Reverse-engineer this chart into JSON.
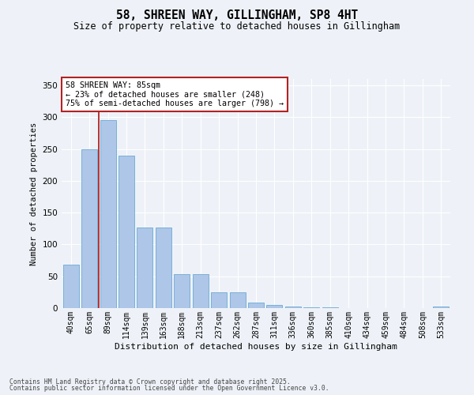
{
  "title": "58, SHREEN WAY, GILLINGHAM, SP8 4HT",
  "subtitle": "Size of property relative to detached houses in Gillingham",
  "xlabel": "Distribution of detached houses by size in Gillingham",
  "ylabel": "Number of detached properties",
  "categories": [
    "40sqm",
    "65sqm",
    "89sqm",
    "114sqm",
    "139sqm",
    "163sqm",
    "188sqm",
    "213sqm",
    "237sqm",
    "262sqm",
    "287sqm",
    "311sqm",
    "336sqm",
    "360sqm",
    "385sqm",
    "410sqm",
    "434sqm",
    "459sqm",
    "484sqm",
    "508sqm",
    "533sqm"
  ],
  "values": [
    68,
    250,
    295,
    240,
    127,
    127,
    54,
    54,
    25,
    25,
    9,
    5,
    2,
    1,
    1,
    0,
    0,
    0,
    0,
    0,
    2
  ],
  "bar_color": "#aec6e8",
  "bar_edge_color": "#6aabd2",
  "vline_x": 1.5,
  "vline_color": "#b22222",
  "annotation_title": "58 SHREEN WAY: 85sqm",
  "annotation_line1": "← 23% of detached houses are smaller (248)",
  "annotation_line2": "75% of semi-detached houses are larger (798) →",
  "annotation_box_color": "#b22222",
  "annotation_box_facecolor": "white",
  "footer1": "Contains HM Land Registry data © Crown copyright and database right 2025.",
  "footer2": "Contains public sector information licensed under the Open Government Licence v3.0.",
  "bg_color": "#eef2f8",
  "grid_color": "#ffffff",
  "ylim": [
    0,
    360
  ],
  "yticks": [
    0,
    50,
    100,
    150,
    200,
    250,
    300,
    350
  ],
  "figsize": [
    6.0,
    5.0
  ],
  "dpi": 100
}
